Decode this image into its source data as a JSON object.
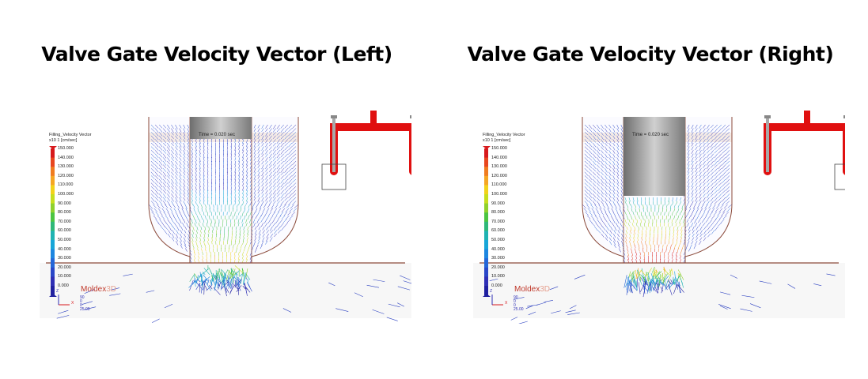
{
  "panels": [
    {
      "title": "Valve Gate Velocity Vector (Left)",
      "side": "left",
      "time": "Time =     0.020 sec",
      "highlight_gate": "left"
    },
    {
      "title": "Valve Gate Velocity Vector (Right)",
      "side": "right",
      "time": "Time =     0.020 sec",
      "highlight_gate": "right"
    }
  ],
  "legend": {
    "title": "Filling_Velocity Vector",
    "scale": "x10 1   [cm/sec]",
    "ticks": [
      "150.000",
      "140.000",
      "130.000",
      "120.000",
      "110.000",
      "100.000",
      "90.000",
      "80.000",
      "70.000",
      "60.000",
      "50.000",
      "40.000",
      "30.000",
      "20.000",
      "10.000",
      "0.000"
    ],
    "colors": [
      "#d7191c",
      "#e8461e",
      "#f07c1f",
      "#f5a623",
      "#f2d21b",
      "#c7de1e",
      "#8fd12d",
      "#4cc541",
      "#2fb878",
      "#1fb3b2",
      "#18a6d8",
      "#1d86e0",
      "#2466d8",
      "#2a47c8",
      "#2f2fb5",
      "#2020a0"
    ]
  },
  "brand": {
    "name": "Moldex",
    "suffix": "3D"
  },
  "axes": {
    "x": "X",
    "z": "Z",
    "n1": "90",
    "n2": "0",
    "n3": "0",
    "scale": "25.00"
  },
  "colors": {
    "manifold": "#e01010",
    "gate_pin": "#a8a8a8",
    "outline": "#8b4a3a"
  }
}
